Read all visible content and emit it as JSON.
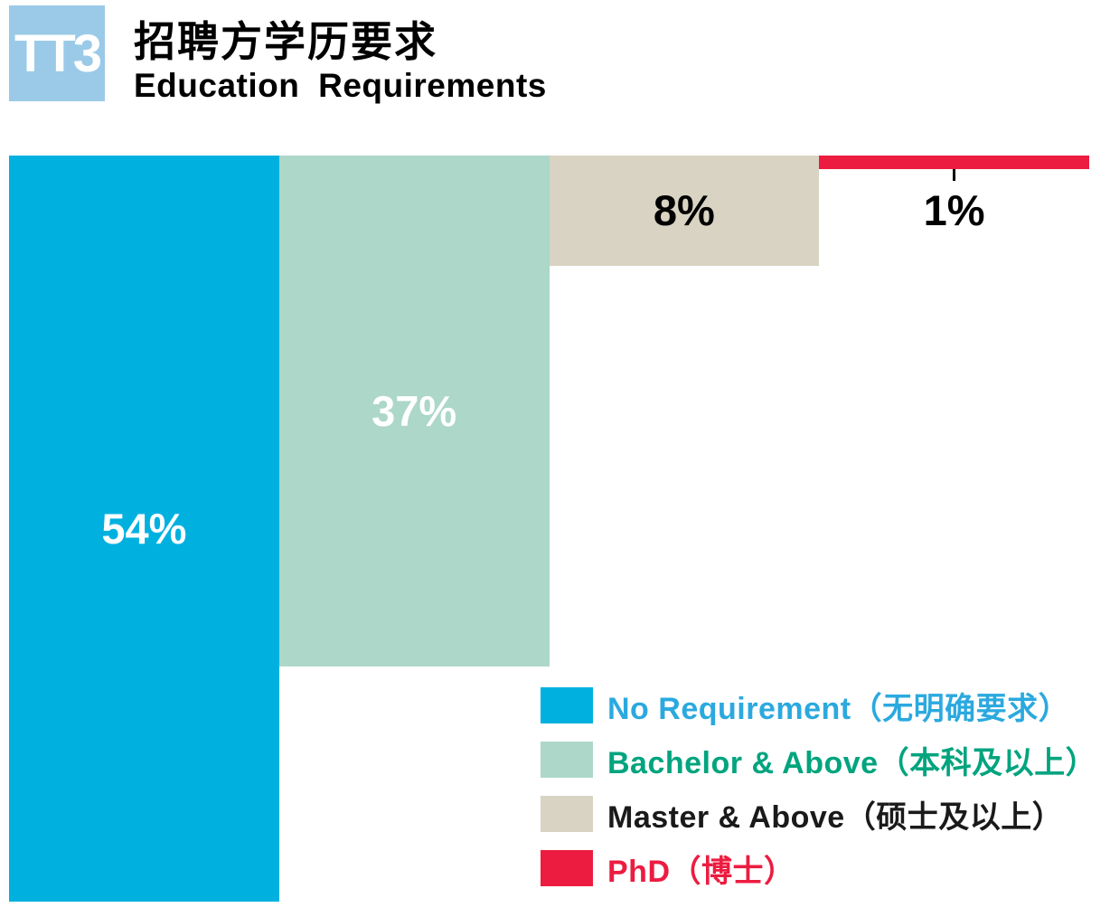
{
  "header": {
    "logo_text": "TT3",
    "title": "招聘方学历要求",
    "subtitle": "Education Requirements"
  },
  "colors": {
    "logo_bg": "#9BCAE8",
    "accent_blue": "#00B1E0",
    "accent_teal": "#ACD7C9",
    "accent_beige": "#D9D3C3",
    "accent_red": "#EC1C40"
  },
  "chart_data": {
    "type": "bar",
    "title": "招聘方学历要求",
    "subtitle": "Education Requirements",
    "orientation": "vertical-hanging-from-top",
    "grid": false,
    "legend_position": "bottom-right",
    "categories": [
      "No Requirement（无明确要求）",
      "Bachelor & Above（本科及以上）",
      "Master & Above（硕士及以上）",
      "PhD（博士）"
    ],
    "ids": [
      "no-requirement",
      "bachelor-and-above",
      "master-and-above",
      "phd"
    ],
    "values": [
      54,
      37,
      8,
      1
    ],
    "value_labels": [
      "54%",
      "37%",
      "8%",
      "1%"
    ],
    "bar_colors": [
      "#00B1E0",
      "#ACD7C9",
      "#D9D3C3",
      "#EC1C40"
    ],
    "label_colors": [
      "#ffffff",
      "#ffffff",
      "#000000",
      "#000000"
    ],
    "value_range": [
      0,
      54
    ],
    "legend": [
      {
        "label": "No Requirement（无明确要求）",
        "swatch": "#00B1E0",
        "text_color": "#2BA9DF"
      },
      {
        "label": "Bachelor & Above（本科及以上）",
        "swatch": "#ACD7C9",
        "text_color": "#00A47E"
      },
      {
        "label": "Master & Above（硕士及以上）",
        "swatch": "#D9D3C3",
        "text_color": "#1a1a1a"
      },
      {
        "label": "PhD（博士）",
        "swatch": "#EC1C40",
        "text_color": "#EC1C40"
      }
    ]
  }
}
